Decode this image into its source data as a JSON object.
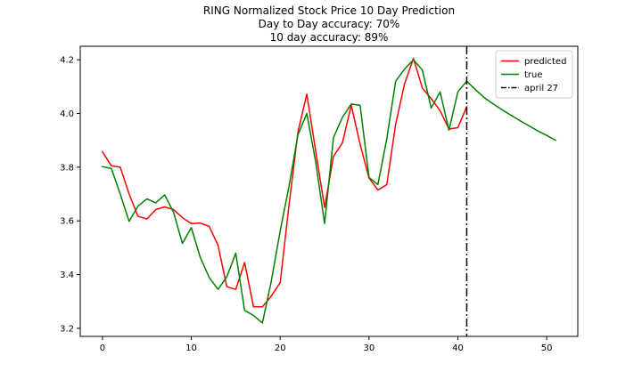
{
  "chart_data": {
    "type": "line",
    "title_lines": [
      "RING Normalized Stock Price 10 Day Prediction",
      "Day to Day accuracy: 70%",
      "10 day accuracy: 89%"
    ],
    "xlabel": "",
    "ylabel": "",
    "xlim": [
      -2.5,
      53.5
    ],
    "ylim": [
      3.17,
      4.25
    ],
    "xticks": [
      0,
      10,
      20,
      30,
      40,
      50
    ],
    "yticks": [
      3.2,
      3.4,
      3.6,
      3.8,
      4.0,
      4.2
    ],
    "xtick_labels": [
      "0",
      "10",
      "20",
      "30",
      "40",
      "50"
    ],
    "ytick_labels": [
      "3.2",
      "3.4",
      "3.6",
      "3.8",
      "4.0",
      "4.2"
    ],
    "grid": false,
    "legend_position": "top-right",
    "series": [
      {
        "name": "predicted",
        "color": "#ff0000",
        "x": [
          0,
          1,
          2,
          3,
          4,
          5,
          6,
          7,
          8,
          9,
          10,
          11,
          12,
          13,
          14,
          15,
          16,
          17,
          18,
          19,
          20,
          21,
          22,
          23,
          24,
          25,
          26,
          27,
          28,
          29,
          30,
          31,
          32,
          33,
          34,
          35,
          36,
          37,
          38,
          39,
          40,
          41
        ],
        "values": [
          3.857,
          3.805,
          3.8,
          3.7,
          3.617,
          3.607,
          3.642,
          3.652,
          3.642,
          3.612,
          3.59,
          3.592,
          3.58,
          3.51,
          3.355,
          3.345,
          3.445,
          3.28,
          3.28,
          3.32,
          3.37,
          3.66,
          3.93,
          4.072,
          3.86,
          3.65,
          3.84,
          3.89,
          4.03,
          3.885,
          3.76,
          3.715,
          3.735,
          3.96,
          4.11,
          4.205,
          4.095,
          4.055,
          4.01,
          3.942,
          3.947,
          4.025
        ]
      },
      {
        "name": "true",
        "color": "#008000",
        "x": [
          0,
          1,
          2,
          3,
          4,
          5,
          6,
          7,
          8,
          9,
          10,
          11,
          12,
          13,
          14,
          15,
          16,
          17,
          18,
          19,
          20,
          21,
          22,
          23,
          24,
          25,
          26,
          27,
          28,
          29,
          30,
          31,
          32,
          33,
          34,
          35,
          36,
          37,
          38,
          39,
          40,
          41,
          42,
          43,
          44,
          45,
          46,
          47,
          48,
          49,
          50,
          51
        ],
        "values": [
          3.802,
          3.795,
          3.7,
          3.598,
          3.655,
          3.682,
          3.667,
          3.697,
          3.632,
          3.516,
          3.575,
          3.465,
          3.39,
          3.345,
          3.392,
          3.48,
          3.267,
          3.248,
          3.22,
          3.375,
          3.562,
          3.73,
          3.92,
          4.0,
          3.82,
          3.59,
          3.91,
          3.985,
          4.035,
          4.03,
          3.762,
          3.735,
          3.905,
          4.12,
          4.165,
          4.2,
          4.162,
          4.02,
          4.08,
          3.938,
          4.08,
          4.12,
          4.088,
          4.058,
          4.035,
          4.013,
          3.993,
          3.973,
          3.954,
          3.935,
          3.918,
          3.9
        ]
      }
    ],
    "vline": {
      "name": "april 27",
      "x": 41,
      "color": "#000000",
      "style": "dash-dot"
    }
  }
}
